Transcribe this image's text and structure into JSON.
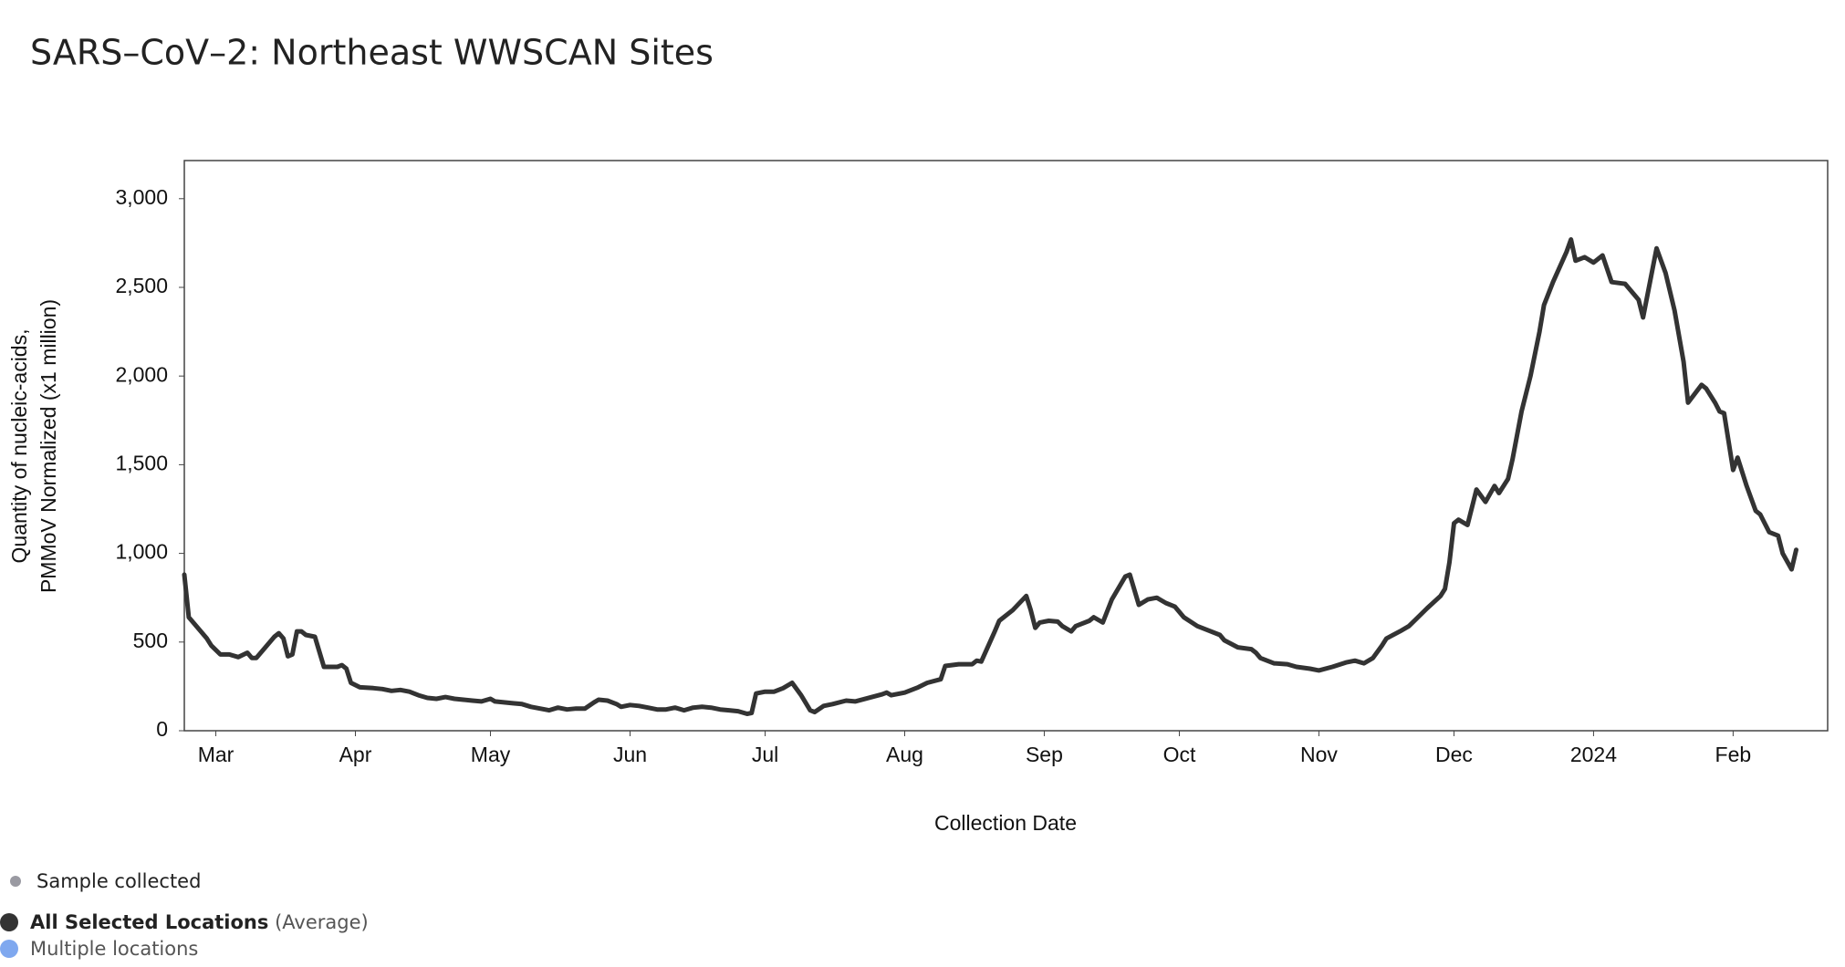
{
  "chart_data": {
    "type": "line",
    "title": "SARS–CoV–2: Northeast WWSCAN Sites",
    "y_label": [
      "Quantity of nucleic-acids,",
      "PMMoV Normalized (x1 million)"
    ],
    "x_label": "Collection Date",
    "x": [
      -7,
      -6,
      -4,
      -2,
      -1,
      1,
      3,
      5,
      7,
      8,
      9,
      11,
      13,
      14,
      15,
      16,
      17,
      18,
      19,
      20,
      22,
      24,
      27,
      28,
      29,
      30,
      32,
      35,
      37,
      39,
      41,
      43,
      45,
      47,
      49,
      51,
      53,
      55,
      57,
      59,
      61,
      62,
      64,
      66,
      68,
      70,
      72,
      74,
      76,
      78,
      80,
      82,
      84,
      85,
      87,
      89,
      90,
      92,
      94,
      96,
      98,
      100,
      102,
      104,
      106,
      108,
      110,
      112,
      114,
      116,
      118,
      119,
      120,
      122,
      124,
      126,
      128,
      130,
      132,
      133,
      135,
      137,
      140,
      142,
      148,
      149,
      150,
      153,
      156,
      158,
      161,
      162,
      165,
      168,
      169,
      170,
      173,
      174,
      177,
      180,
      181,
      182,
      183,
      185,
      187,
      188,
      190,
      191,
      194,
      195,
      197,
      199,
      202,
      203,
      205,
      207,
      209,
      211,
      213,
      215,
      218,
      220,
      223,
      224,
      227,
      230,
      231,
      232,
      235,
      238,
      240,
      243,
      245,
      248,
      251,
      253,
      255,
      257,
      259,
      260,
      263,
      265,
      267,
      269,
      272,
      273,
      274,
      275,
      276,
      278,
      280,
      282,
      284,
      285,
      287,
      288,
      290,
      292,
      294,
      295,
      297,
      300,
      301,
      302,
      304,
      306,
      308,
      310,
      313,
      316,
      317,
      320,
      322,
      324,
      326,
      327,
      330,
      331,
      333,
      334,
      335,
      337,
      338,
      340,
      342,
      343,
      345,
      347,
      348,
      350,
      351
    ],
    "series": [
      {
        "name": "All Selected Locations",
        "color": "#333333",
        "values": [
          880,
          640,
          580,
          520,
          480,
          430,
          430,
          415,
          440,
          410,
          410,
          470,
          530,
          550,
          520,
          420,
          430,
          560,
          560,
          540,
          530,
          360,
          360,
          370,
          350,
          270,
          245,
          240,
          235,
          225,
          230,
          220,
          200,
          185,
          180,
          190,
          180,
          175,
          170,
          165,
          180,
          165,
          160,
          155,
          150,
          135,
          125,
          115,
          130,
          120,
          125,
          125,
          160,
          175,
          170,
          150,
          135,
          145,
          140,
          130,
          120,
          120,
          130,
          115,
          130,
          135,
          130,
          120,
          115,
          110,
          95,
          100,
          210,
          220,
          220,
          240,
          270,
          200,
          115,
          105,
          140,
          150,
          170,
          165,
          205,
          215,
          200,
          215,
          245,
          270,
          290,
          365,
          375,
          375,
          395,
          390,
          560,
          620,
          680,
          760,
          680,
          580,
          610,
          620,
          615,
          590,
          560,
          590,
          620,
          640,
          610,
          740,
          870,
          880,
          710,
          740,
          750,
          720,
          700,
          640,
          590,
          570,
          540,
          510,
          470,
          460,
          440,
          410,
          380,
          375,
          360,
          350,
          340,
          360,
          385,
          395,
          380,
          410,
          480,
          520,
          560,
          590,
          640,
          690,
          760,
          800,
          950,
          1170,
          1190,
          1160,
          1360,
          1290,
          1380,
          1340,
          1420,
          1530,
          1800,
          2000,
          2250,
          2400,
          2530,
          2700,
          2770,
          2650,
          2670,
          2640,
          2680,
          2530,
          2520,
          2430,
          2330,
          2720,
          2580,
          2370,
          2080,
          1850,
          1950,
          1930,
          1850,
          1800,
          1790,
          1470,
          1540,
          1380,
          1240,
          1220,
          1120,
          1100,
          1000,
          910,
          1020
        ]
      }
    ],
    "xlim": [
      -7,
      358
    ],
    "xticks": [
      {
        "value": 0,
        "label": "Mar"
      },
      {
        "value": 31,
        "label": "Apr"
      },
      {
        "value": 61,
        "label": "May"
      },
      {
        "value": 92,
        "label": "Jun"
      },
      {
        "value": 122,
        "label": "Jul"
      },
      {
        "value": 153,
        "label": "Aug"
      },
      {
        "value": 184,
        "label": "Sep"
      },
      {
        "value": 214,
        "label": "Oct"
      },
      {
        "value": 245,
        "label": "Nov"
      },
      {
        "value": 275,
        "label": "Dec"
      },
      {
        "value": 306,
        "label": "2024"
      },
      {
        "value": 337,
        "label": "Feb"
      }
    ],
    "ylim": [
      0,
      3215
    ],
    "yticks": [
      0,
      500,
      {
        "value": 1000,
        "label": "1,000"
      },
      {
        "value": 1500,
        "label": "1,500"
      },
      {
        "value": 2000,
        "label": "2,000"
      },
      {
        "value": 2500,
        "label": "2,500"
      },
      {
        "value": 3000,
        "label": "3,000"
      }
    ],
    "grid": false,
    "legend_notes": {
      "sample": "Sample collected",
      "average": "(Average)",
      "multiple": "Multiple locations"
    }
  }
}
